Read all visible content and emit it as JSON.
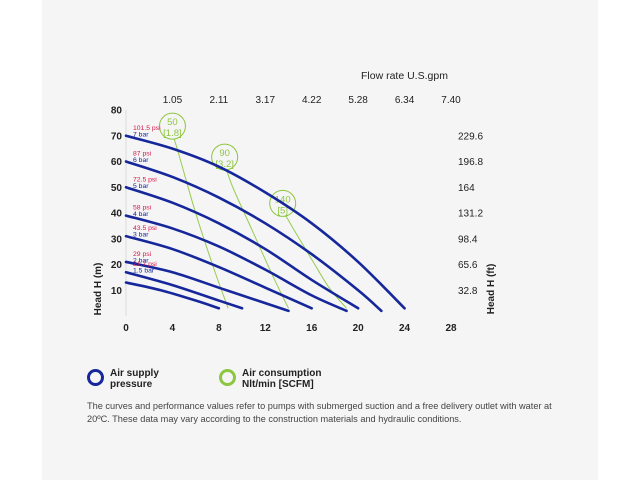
{
  "chart_data": {
    "type": "line",
    "title": "",
    "xlabel": "",
    "ylabel": "Head H (m)",
    "ylabel_right": "Head H (ft)",
    "x2label": "Flow rate U.S.gpm",
    "xlim": [
      0,
      28
    ],
    "ylim": [
      0,
      80
    ],
    "x_ticks": [
      "0",
      "4",
      "8",
      "12",
      "16",
      "20",
      "24",
      "28"
    ],
    "y_ticks": [
      "10",
      "20",
      "30",
      "40",
      "50",
      "60",
      "70",
      "80"
    ],
    "x2_ticks": [
      "1.05",
      "2.11",
      "3.17",
      "4.22",
      "5.28",
      "6.34",
      "7.40"
    ],
    "y2_ticks": [
      "32.8",
      "65.6",
      "98.4",
      "131.2",
      "164",
      "196.8",
      "229.6"
    ],
    "series": [
      {
        "psi": "101.5 psi",
        "bar": "7 bar",
        "x": [
          0,
          4,
          8,
          12,
          16,
          20,
          24
        ],
        "y": [
          70,
          65,
          58,
          48,
          36,
          21,
          3
        ]
      },
      {
        "psi": "87 psi",
        "bar": "6 bar",
        "x": [
          0,
          4,
          8,
          12,
          16,
          20,
          22
        ],
        "y": [
          60,
          54,
          46,
          36,
          24,
          10,
          2
        ]
      },
      {
        "psi": "72.5 psi",
        "bar": "5 bar",
        "x": [
          0,
          4,
          8,
          12,
          16,
          20
        ],
        "y": [
          50,
          44,
          36,
          26,
          14,
          3
        ]
      },
      {
        "psi": "58 psi",
        "bar": "4 bar",
        "x": [
          0,
          4,
          8,
          12,
          16,
          19
        ],
        "y": [
          39,
          34,
          27,
          18,
          8,
          2
        ]
      },
      {
        "psi": "43.5 psi",
        "bar": "3 bar",
        "x": [
          0,
          4,
          8,
          12,
          16
        ],
        "y": [
          31,
          26,
          19,
          11,
          3
        ]
      },
      {
        "psi": "29 psi",
        "bar": "2 bar",
        "x": [
          0,
          4,
          8,
          12,
          14
        ],
        "y": [
          21,
          17,
          11,
          5,
          2
        ]
      },
      {
        "psi": "21.7 psi",
        "bar": "1.5 bar",
        "x": [
          0,
          4,
          8,
          10
        ],
        "y": [
          17,
          12,
          6,
          3
        ]
      },
      {
        "psi": "",
        "bar": "",
        "x": [
          0,
          3,
          6,
          8
        ],
        "y": [
          13,
          10,
          6,
          3
        ]
      }
    ],
    "consumption_curves": [
      {
        "label": "50",
        "sub": "[1.8]",
        "x": [
          4,
          4.6,
          6,
          7.6,
          8.8
        ],
        "y": [
          71,
          62,
          40,
          18,
          3
        ]
      },
      {
        "label": "90",
        "sub": "[3.2]",
        "x": [
          8.5,
          9.2,
          10.8,
          12.6,
          14
        ],
        "y": [
          59,
          50,
          34,
          16,
          3
        ]
      },
      {
        "label": "140",
        "sub": "[5]",
        "x": [
          13.5,
          14.4,
          16,
          17.5,
          19
        ],
        "y": [
          41,
          34,
          22,
          11,
          3
        ]
      }
    ],
    "colors": {
      "pressure": "#16279b",
      "consumption": "#8dc63f",
      "psi_label": "#d4174b"
    }
  },
  "legend": {
    "pressure_label": "Air supply\npressure",
    "consumption_label": "Air consumption\nNlt/min [SCFM]"
  },
  "note": "The curves and performance values refer to pumps with submerged suction and a free delivery outlet with water at 20ºC. These data may vary according to the construction materials and hydraulic conditions."
}
